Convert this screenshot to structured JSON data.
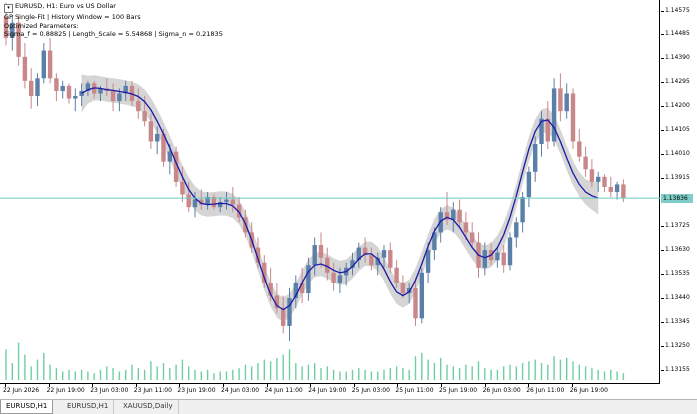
{
  "legend": {
    "line1": "EURUSD, H1:  Euro vs US Dollar",
    "line2": "GP Single-Fit | History Window = 100 Bars",
    "line3": "Optimized Parameters:",
    "line4": "Sigma_f = 0.88825 | Length_Scale = 5.54868 | Sigma_n = 0.21835"
  },
  "price_axis": {
    "labels": [
      "1.14575",
      "1.14485",
      "1.14390",
      "1.14295",
      "1.14200",
      "1.14105",
      "1.14010",
      "1.13915",
      "1.13820",
      "1.13725",
      "1.13630",
      "1.13535",
      "1.13440",
      "1.13345",
      "1.13250",
      "1.13155"
    ],
    "current_price": "1.13836"
  },
  "time_axis": {
    "labels": [
      "22 Jun 2026",
      "22 Jun 19:00",
      "23 Jun 03:00",
      "23 Jun 11:00",
      "23 Jun 19:00",
      "24 Jun 03:00",
      "24 Jun 11:00",
      "24 Jun 19:00",
      "25 Jun 03:00",
      "25 Jun 11:00",
      "25 Jun 19:00",
      "26 Jun 03:00",
      "26 Jun 11:00",
      "26 Jun 19:00"
    ]
  },
  "tabs": [
    {
      "label": "EURUSD,H1",
      "active": true
    },
    {
      "label": "EURUSD,H1",
      "active": false
    },
    {
      "label": "XAUUSD,Daily",
      "active": false
    }
  ],
  "colors": {
    "bull": "#5a7fa8",
    "bear": "#c9878a",
    "fit": "#1a1aa6",
    "band": "#d3d3d3",
    "price_line": "#6fc9c0",
    "volume": "#6ecf9e"
  },
  "chart_data": {
    "type": "candlestick",
    "symbol": "EURUSD",
    "timeframe": "H1",
    "current_price": 1.13836,
    "ylim": [
      1.131,
      1.1462
    ],
    "gp_fit_start_index": 12,
    "bars": [
      {
        "o": 1.14555,
        "h": 1.1461,
        "l": 1.1444,
        "c": 1.1447,
        "v": 18
      },
      {
        "o": 1.1447,
        "h": 1.1456,
        "l": 1.1442,
        "c": 1.1453,
        "v": 10
      },
      {
        "o": 1.1453,
        "h": 1.1456,
        "l": 1.1436,
        "c": 1.14395,
        "v": 22
      },
      {
        "o": 1.14395,
        "h": 1.1445,
        "l": 1.1427,
        "c": 1.143,
        "v": 15
      },
      {
        "o": 1.143,
        "h": 1.1435,
        "l": 1.1419,
        "c": 1.1424,
        "v": 8
      },
      {
        "o": 1.1424,
        "h": 1.1433,
        "l": 1.142,
        "c": 1.1431,
        "v": 12
      },
      {
        "o": 1.1431,
        "h": 1.1445,
        "l": 1.1429,
        "c": 1.1442,
        "v": 16
      },
      {
        "o": 1.1442,
        "h": 1.1447,
        "l": 1.1429,
        "c": 1.1431,
        "v": 9
      },
      {
        "o": 1.1431,
        "h": 1.1433,
        "l": 1.1422,
        "c": 1.1426,
        "v": 7
      },
      {
        "o": 1.1426,
        "h": 1.143,
        "l": 1.1423,
        "c": 1.1428,
        "v": 5
      },
      {
        "o": 1.1428,
        "h": 1.1429,
        "l": 1.1421,
        "c": 1.1423,
        "v": 6
      },
      {
        "o": 1.1423,
        "h": 1.1427,
        "l": 1.1418,
        "c": 1.1424,
        "v": 5
      },
      {
        "o": 1.1424,
        "h": 1.1429,
        "l": 1.142,
        "c": 1.1426,
        "v": 6
      },
      {
        "o": 1.1426,
        "h": 1.143,
        "l": 1.1424,
        "c": 1.1429,
        "v": 5
      },
      {
        "o": 1.1429,
        "h": 1.143,
        "l": 1.1423,
        "c": 1.1425,
        "v": 4
      },
      {
        "o": 1.1425,
        "h": 1.1428,
        "l": 1.1422,
        "c": 1.1427,
        "v": 6
      },
      {
        "o": 1.1427,
        "h": 1.1431,
        "l": 1.1424,
        "c": 1.1426,
        "v": 8
      },
      {
        "o": 1.1426,
        "h": 1.1429,
        "l": 1.1418,
        "c": 1.1422,
        "v": 7
      },
      {
        "o": 1.1422,
        "h": 1.1427,
        "l": 1.1418,
        "c": 1.1425,
        "v": 5
      },
      {
        "o": 1.1425,
        "h": 1.143,
        "l": 1.1422,
        "c": 1.1428,
        "v": 6
      },
      {
        "o": 1.1428,
        "h": 1.143,
        "l": 1.142,
        "c": 1.1422,
        "v": 9
      },
      {
        "o": 1.1422,
        "h": 1.1427,
        "l": 1.1415,
        "c": 1.1418,
        "v": 7
      },
      {
        "o": 1.1418,
        "h": 1.1424,
        "l": 1.1412,
        "c": 1.1414,
        "v": 6
      },
      {
        "o": 1.1414,
        "h": 1.1417,
        "l": 1.1403,
        "c": 1.1406,
        "v": 11
      },
      {
        "o": 1.1406,
        "h": 1.1412,
        "l": 1.1401,
        "c": 1.1409,
        "v": 8
      },
      {
        "o": 1.1409,
        "h": 1.1411,
        "l": 1.1396,
        "c": 1.1398,
        "v": 10
      },
      {
        "o": 1.1398,
        "h": 1.1405,
        "l": 1.1393,
        "c": 1.1402,
        "v": 7
      },
      {
        "o": 1.1402,
        "h": 1.1404,
        "l": 1.1388,
        "c": 1.139,
        "v": 9
      },
      {
        "o": 1.139,
        "h": 1.1396,
        "l": 1.1382,
        "c": 1.1385,
        "v": 12
      },
      {
        "o": 1.1385,
        "h": 1.139,
        "l": 1.1378,
        "c": 1.138,
        "v": 8
      },
      {
        "o": 1.138,
        "h": 1.1386,
        "l": 1.1376,
        "c": 1.1383,
        "v": 6
      },
      {
        "o": 1.1383,
        "h": 1.1387,
        "l": 1.1379,
        "c": 1.1381,
        "v": 5
      },
      {
        "o": 1.1381,
        "h": 1.1386,
        "l": 1.1379,
        "c": 1.1384,
        "v": 6
      },
      {
        "o": 1.1384,
        "h": 1.1385,
        "l": 1.1379,
        "c": 1.138,
        "v": 4
      },
      {
        "o": 1.138,
        "h": 1.1384,
        "l": 1.1378,
        "c": 1.1382,
        "v": 5
      },
      {
        "o": 1.1382,
        "h": 1.1386,
        "l": 1.1379,
        "c": 1.1383,
        "v": 5
      },
      {
        "o": 1.1383,
        "h": 1.1388,
        "l": 1.1378,
        "c": 1.1381,
        "v": 6
      },
      {
        "o": 1.1381,
        "h": 1.1384,
        "l": 1.1374,
        "c": 1.1376,
        "v": 7
      },
      {
        "o": 1.1376,
        "h": 1.1379,
        "l": 1.1368,
        "c": 1.137,
        "v": 9
      },
      {
        "o": 1.137,
        "h": 1.1374,
        "l": 1.1362,
        "c": 1.1364,
        "v": 8
      },
      {
        "o": 1.1364,
        "h": 1.1368,
        "l": 1.1356,
        "c": 1.1358,
        "v": 10
      },
      {
        "o": 1.1358,
        "h": 1.1361,
        "l": 1.1348,
        "c": 1.135,
        "v": 12
      },
      {
        "o": 1.135,
        "h": 1.1356,
        "l": 1.1343,
        "c": 1.1345,
        "v": 11
      },
      {
        "o": 1.1345,
        "h": 1.135,
        "l": 1.1338,
        "c": 1.134,
        "v": 13
      },
      {
        "o": 1.134,
        "h": 1.1345,
        "l": 1.133,
        "c": 1.1333,
        "v": 15
      },
      {
        "o": 1.1333,
        "h": 1.1348,
        "l": 1.1327,
        "c": 1.1344,
        "v": 18
      },
      {
        "o": 1.1344,
        "h": 1.1353,
        "l": 1.134,
        "c": 1.135,
        "v": 10
      },
      {
        "o": 1.135,
        "h": 1.1356,
        "l": 1.1342,
        "c": 1.1346,
        "v": 8
      },
      {
        "o": 1.1346,
        "h": 1.136,
        "l": 1.1343,
        "c": 1.1357,
        "v": 9
      },
      {
        "o": 1.1357,
        "h": 1.1368,
        "l": 1.1353,
        "c": 1.1365,
        "v": 10
      },
      {
        "o": 1.1365,
        "h": 1.137,
        "l": 1.1356,
        "c": 1.136,
        "v": 7
      },
      {
        "o": 1.136,
        "h": 1.1364,
        "l": 1.1351,
        "c": 1.1354,
        "v": 8
      },
      {
        "o": 1.1354,
        "h": 1.1358,
        "l": 1.1347,
        "c": 1.135,
        "v": 6
      },
      {
        "o": 1.135,
        "h": 1.1356,
        "l": 1.1346,
        "c": 1.1353,
        "v": 5
      },
      {
        "o": 1.1353,
        "h": 1.1358,
        "l": 1.1349,
        "c": 1.1356,
        "v": 5
      },
      {
        "o": 1.1356,
        "h": 1.1362,
        "l": 1.1353,
        "c": 1.1359,
        "v": 6
      },
      {
        "o": 1.1359,
        "h": 1.1366,
        "l": 1.1356,
        "c": 1.1364,
        "v": 7
      },
      {
        "o": 1.1364,
        "h": 1.1368,
        "l": 1.1358,
        "c": 1.1361,
        "v": 6
      },
      {
        "o": 1.1361,
        "h": 1.1364,
        "l": 1.1355,
        "c": 1.1357,
        "v": 5
      },
      {
        "o": 1.1357,
        "h": 1.1362,
        "l": 1.1353,
        "c": 1.136,
        "v": 5
      },
      {
        "o": 1.136,
        "h": 1.1365,
        "l": 1.1356,
        "c": 1.1363,
        "v": 6
      },
      {
        "o": 1.1363,
        "h": 1.1366,
        "l": 1.1354,
        "c": 1.1356,
        "v": 7
      },
      {
        "o": 1.1356,
        "h": 1.1359,
        "l": 1.1348,
        "c": 1.135,
        "v": 8
      },
      {
        "o": 1.135,
        "h": 1.1353,
        "l": 1.1344,
        "c": 1.1346,
        "v": 7
      },
      {
        "o": 1.1346,
        "h": 1.135,
        "l": 1.1342,
        "c": 1.1348,
        "v": 6
      },
      {
        "o": 1.1348,
        "h": 1.1352,
        "l": 1.1333,
        "c": 1.1336,
        "v": 14
      },
      {
        "o": 1.1336,
        "h": 1.1356,
        "l": 1.1334,
        "c": 1.1354,
        "v": 16
      },
      {
        "o": 1.1354,
        "h": 1.1366,
        "l": 1.135,
        "c": 1.1363,
        "v": 12
      },
      {
        "o": 1.1363,
        "h": 1.1372,
        "l": 1.1359,
        "c": 1.137,
        "v": 10
      },
      {
        "o": 1.137,
        "h": 1.138,
        "l": 1.1366,
        "c": 1.1378,
        "v": 13
      },
      {
        "o": 1.1378,
        "h": 1.1386,
        "l": 1.1373,
        "c": 1.1375,
        "v": 9
      },
      {
        "o": 1.1375,
        "h": 1.1382,
        "l": 1.137,
        "c": 1.1379,
        "v": 8
      },
      {
        "o": 1.1379,
        "h": 1.1383,
        "l": 1.1372,
        "c": 1.1374,
        "v": 7
      },
      {
        "o": 1.1374,
        "h": 1.1378,
        "l": 1.1367,
        "c": 1.137,
        "v": 9
      },
      {
        "o": 1.137,
        "h": 1.1374,
        "l": 1.1364,
        "c": 1.1366,
        "v": 8
      },
      {
        "o": 1.1366,
        "h": 1.137,
        "l": 1.1352,
        "c": 1.1356,
        "v": 11
      },
      {
        "o": 1.1356,
        "h": 1.1366,
        "l": 1.1353,
        "c": 1.1363,
        "v": 7
      },
      {
        "o": 1.1363,
        "h": 1.1366,
        "l": 1.1357,
        "c": 1.1359,
        "v": 6
      },
      {
        "o": 1.1359,
        "h": 1.1364,
        "l": 1.1356,
        "c": 1.1362,
        "v": 6
      },
      {
        "o": 1.1362,
        "h": 1.1365,
        "l": 1.1354,
        "c": 1.1357,
        "v": 8
      },
      {
        "o": 1.1357,
        "h": 1.137,
        "l": 1.1355,
        "c": 1.1368,
        "v": 9
      },
      {
        "o": 1.1368,
        "h": 1.1376,
        "l": 1.1364,
        "c": 1.1374,
        "v": 8
      },
      {
        "o": 1.1374,
        "h": 1.1386,
        "l": 1.137,
        "c": 1.1384,
        "v": 10
      },
      {
        "o": 1.1384,
        "h": 1.1396,
        "l": 1.138,
        "c": 1.1394,
        "v": 11
      },
      {
        "o": 1.1394,
        "h": 1.1408,
        "l": 1.139,
        "c": 1.1405,
        "v": 12
      },
      {
        "o": 1.1405,
        "h": 1.1418,
        "l": 1.14,
        "c": 1.1415,
        "v": 10
      },
      {
        "o": 1.1415,
        "h": 1.1422,
        "l": 1.1403,
        "c": 1.1406,
        "v": 9
      },
      {
        "o": 1.1406,
        "h": 1.1431,
        "l": 1.1404,
        "c": 1.1427,
        "v": 14
      },
      {
        "o": 1.1427,
        "h": 1.1433,
        "l": 1.1414,
        "c": 1.1418,
        "v": 12
      },
      {
        "o": 1.1418,
        "h": 1.1429,
        "l": 1.1415,
        "c": 1.1425,
        "v": 13
      },
      {
        "o": 1.1425,
        "h": 1.1427,
        "l": 1.1403,
        "c": 1.1406,
        "v": 11
      },
      {
        "o": 1.1406,
        "h": 1.1411,
        "l": 1.1398,
        "c": 1.14,
        "v": 9
      },
      {
        "o": 1.14,
        "h": 1.1404,
        "l": 1.1392,
        "c": 1.1395,
        "v": 8
      },
      {
        "o": 1.1395,
        "h": 1.1399,
        "l": 1.1388,
        "c": 1.139,
        "v": 7
      },
      {
        "o": 1.139,
        "h": 1.1394,
        "l": 1.1386,
        "c": 1.1392,
        "v": 6
      },
      {
        "o": 1.1392,
        "h": 1.1393,
        "l": 1.1386,
        "c": 1.1388,
        "v": 5
      },
      {
        "o": 1.1388,
        "h": 1.1392,
        "l": 1.1384,
        "c": 1.1386,
        "v": 6
      },
      {
        "o": 1.1386,
        "h": 1.139,
        "l": 1.1383,
        "c": 1.1389,
        "v": 5
      },
      {
        "o": 1.1389,
        "h": 1.1391,
        "l": 1.1382,
        "c": 1.13836,
        "v": 4
      }
    ],
    "gp_fit": [
      {
        "mean": 1.1425,
        "sigma": 0.00075
      },
      {
        "mean": 1.14265,
        "sigma": 0.00055
      },
      {
        "mean": 1.14272,
        "sigma": 0.0005
      },
      {
        "mean": 1.1427,
        "sigma": 0.00048
      },
      {
        "mean": 1.14265,
        "sigma": 0.00048
      },
      {
        "mean": 1.14262,
        "sigma": 0.00048
      },
      {
        "mean": 1.14258,
        "sigma": 0.00048
      },
      {
        "mean": 1.14254,
        "sigma": 0.00048
      },
      {
        "mean": 1.14248,
        "sigma": 0.00048
      },
      {
        "mean": 1.14238,
        "sigma": 0.00048
      },
      {
        "mean": 1.14218,
        "sigma": 0.00048
      },
      {
        "mean": 1.14185,
        "sigma": 0.00048
      },
      {
        "mean": 1.1414,
        "sigma": 0.00048
      },
      {
        "mean": 1.1409,
        "sigma": 0.00048
      },
      {
        "mean": 1.14035,
        "sigma": 0.00048
      },
      {
        "mean": 1.13975,
        "sigma": 0.00048
      },
      {
        "mean": 1.1392,
        "sigma": 0.00048
      },
      {
        "mean": 1.1387,
        "sigma": 0.00048
      },
      {
        "mean": 1.13835,
        "sigma": 0.00048
      },
      {
        "mean": 1.13815,
        "sigma": 0.00048
      },
      {
        "mean": 1.1381,
        "sigma": 0.00048
      },
      {
        "mean": 1.13812,
        "sigma": 0.00048
      },
      {
        "mean": 1.13815,
        "sigma": 0.00048
      },
      {
        "mean": 1.13814,
        "sigma": 0.00048
      },
      {
        "mean": 1.13805,
        "sigma": 0.00048
      },
      {
        "mean": 1.1378,
        "sigma": 0.00048
      },
      {
        "mean": 1.13735,
        "sigma": 0.00048
      },
      {
        "mean": 1.1367,
        "sigma": 0.00048
      },
      {
        "mean": 1.13595,
        "sigma": 0.00048
      },
      {
        "mean": 1.1352,
        "sigma": 0.00048
      },
      {
        "mean": 1.13455,
        "sigma": 0.00048
      },
      {
        "mean": 1.1341,
        "sigma": 0.00048
      },
      {
        "mean": 1.13395,
        "sigma": 0.00048
      },
      {
        "mean": 1.1341,
        "sigma": 0.00048
      },
      {
        "mean": 1.1345,
        "sigma": 0.00048
      },
      {
        "mean": 1.135,
        "sigma": 0.00048
      },
      {
        "mean": 1.13545,
        "sigma": 0.00048
      },
      {
        "mean": 1.1357,
        "sigma": 0.00048
      },
      {
        "mean": 1.13575,
        "sigma": 0.00048
      },
      {
        "mean": 1.13565,
        "sigma": 0.00048
      },
      {
        "mean": 1.1355,
        "sigma": 0.00048
      },
      {
        "mean": 1.1354,
        "sigma": 0.00048
      },
      {
        "mean": 1.13545,
        "sigma": 0.00048
      },
      {
        "mean": 1.13565,
        "sigma": 0.00048
      },
      {
        "mean": 1.13595,
        "sigma": 0.00048
      },
      {
        "mean": 1.13615,
        "sigma": 0.00048
      },
      {
        "mean": 1.13615,
        "sigma": 0.00048
      },
      {
        "mean": 1.13595,
        "sigma": 0.00048
      },
      {
        "mean": 1.13555,
        "sigma": 0.00048
      },
      {
        "mean": 1.13505,
        "sigma": 0.00048
      },
      {
        "mean": 1.13465,
        "sigma": 0.00048
      },
      {
        "mean": 1.1345,
        "sigma": 0.00048
      },
      {
        "mean": 1.13465,
        "sigma": 0.00048
      },
      {
        "mean": 1.1351,
        "sigma": 0.00048
      },
      {
        "mean": 1.13575,
        "sigma": 0.00048
      },
      {
        "mean": 1.13645,
        "sigma": 0.00048
      },
      {
        "mean": 1.13705,
        "sigma": 0.00048
      },
      {
        "mean": 1.13745,
        "sigma": 0.00048
      },
      {
        "mean": 1.1376,
        "sigma": 0.00048
      },
      {
        "mean": 1.1375,
        "sigma": 0.00048
      },
      {
        "mean": 1.1372,
        "sigma": 0.00048
      },
      {
        "mean": 1.1368,
        "sigma": 0.00048
      },
      {
        "mean": 1.1364,
        "sigma": 0.00048
      },
      {
        "mean": 1.1361,
        "sigma": 0.00048
      },
      {
        "mean": 1.136,
        "sigma": 0.00048
      },
      {
        "mean": 1.1361,
        "sigma": 0.00048
      },
      {
        "mean": 1.1364,
        "sigma": 0.00048
      },
      {
        "mean": 1.1369,
        "sigma": 0.00048
      },
      {
        "mean": 1.1376,
        "sigma": 0.00048
      },
      {
        "mean": 1.13845,
        "sigma": 0.00048
      },
      {
        "mean": 1.1394,
        "sigma": 0.00048
      },
      {
        "mean": 1.1403,
        "sigma": 0.00048
      },
      {
        "mean": 1.141,
        "sigma": 0.00048
      },
      {
        "mean": 1.1414,
        "sigma": 0.00048
      },
      {
        "mean": 1.14145,
        "sigma": 0.00048
      },
      {
        "mean": 1.14115,
        "sigma": 0.00048
      },
      {
        "mean": 1.1406,
        "sigma": 0.00048
      },
      {
        "mean": 1.13995,
        "sigma": 0.00048
      },
      {
        "mean": 1.13935,
        "sigma": 0.00048
      },
      {
        "mean": 1.1389,
        "sigma": 0.00048
      },
      {
        "mean": 1.1386,
        "sigma": 0.0005
      },
      {
        "mean": 1.13845,
        "sigma": 0.00055
      },
      {
        "mean": 1.13836,
        "sigma": 0.00065
      }
    ]
  }
}
